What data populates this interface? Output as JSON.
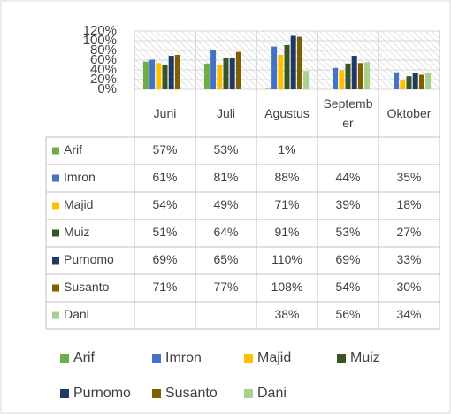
{
  "chart_data": {
    "type": "bar",
    "categories": [
      "Juni",
      "Juli",
      "Agustus",
      "September",
      "Oktober"
    ],
    "ylim": [
      0,
      120
    ],
    "yticks": [
      {
        "value": 0,
        "label": "0%"
      },
      {
        "value": 20,
        "label": "20%"
      },
      {
        "value": 40,
        "label": "40%"
      },
      {
        "value": 60,
        "label": "60%"
      },
      {
        "value": 80,
        "label": "80%"
      },
      {
        "value": 100,
        "label": "100%"
      },
      {
        "value": 120,
        "label": "120%"
      }
    ],
    "grid": true,
    "series": [
      {
        "name": "Arif",
        "color": "#70ad47",
        "values": [
          57,
          53,
          1,
          null,
          null
        ],
        "value_labels": [
          "57%",
          "53%",
          "1%",
          null,
          null
        ]
      },
      {
        "name": "Imron",
        "color": "#4472c4",
        "values": [
          61,
          81,
          88,
          44,
          35
        ],
        "value_labels": [
          "61%",
          "81%",
          "88%",
          "44%",
          "35%"
        ]
      },
      {
        "name": "Majid",
        "color": "#ffc000",
        "values": [
          54,
          49,
          71,
          39,
          18
        ],
        "value_labels": [
          "54%",
          "49%",
          "71%",
          "39%",
          "18%"
        ]
      },
      {
        "name": "Muiz",
        "color": "#375623",
        "values": [
          51,
          64,
          91,
          53,
          27
        ],
        "value_labels": [
          "51%",
          "64%",
          "91%",
          "53%",
          "27%"
        ]
      },
      {
        "name": "Purnomo",
        "color": "#203864",
        "values": [
          69,
          65,
          110,
          69,
          33
        ],
        "value_labels": [
          "69%",
          "65%",
          "110%",
          "69%",
          "33%"
        ]
      },
      {
        "name": "Susanto",
        "color": "#7f6000",
        "values": [
          71,
          77,
          108,
          54,
          30
        ],
        "value_labels": [
          "71%",
          "77%",
          "108%",
          "54%",
          "30%"
        ]
      },
      {
        "name": "Dani",
        "color": "#a9d18e",
        "values": [
          null,
          null,
          38,
          56,
          34
        ],
        "value_labels": [
          null,
          null,
          "38%",
          "56%",
          "34%"
        ]
      }
    ]
  }
}
